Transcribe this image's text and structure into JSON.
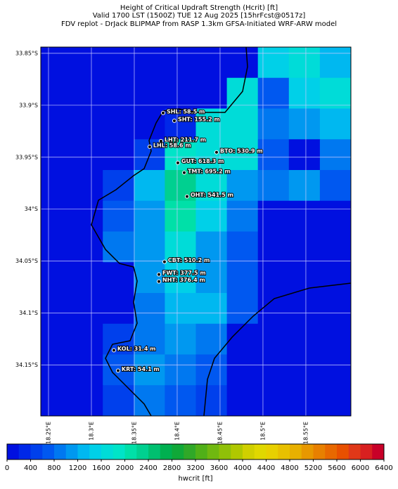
{
  "header": {
    "lines": [
      "Height of Critical Updraft Strength (Hcrit) [ft]",
      "Valid 1700 LST (1500Z) TUE 12 Aug 2025 [15hrFcst@0517z]",
      "FDV replot - DrJack BLIPMAP from RASP 1.3km GFSA-Initiated WRF-ARW model"
    ]
  },
  "map": {
    "xlim": [
      18.241,
      18.6025
    ],
    "ylim": [
      -34.199,
      -33.844
    ],
    "xticks": [
      {
        "value": 18.25,
        "label": "18.25°E"
      },
      {
        "value": 18.3,
        "label": "18.3°E"
      },
      {
        "value": 18.35,
        "label": "18.35°E"
      },
      {
        "value": 18.4,
        "label": "18.4°E"
      },
      {
        "value": 18.45,
        "label": "18.45°E"
      },
      {
        "value": 18.5,
        "label": "18.5°E"
      },
      {
        "value": 18.55,
        "label": "18.55°E"
      }
    ],
    "yticks": [
      {
        "value": -33.85,
        "label": "33.85°S"
      },
      {
        "value": -33.9,
        "label": "33.9°S"
      },
      {
        "value": -33.95,
        "label": "33.95°S"
      },
      {
        "value": -34.0,
        "label": "34°S"
      },
      {
        "value": -34.05,
        "label": "34.05°S"
      },
      {
        "value": -34.1,
        "label": "34.1°S"
      },
      {
        "value": -34.15,
        "label": "34.15°S"
      }
    ],
    "grid": [
      [
        100,
        100,
        100,
        100,
        100,
        100,
        100,
        1500,
        1700,
        1300
      ],
      [
        100,
        100,
        100,
        100,
        100,
        100,
        1700,
        700,
        1500,
        1700
      ],
      [
        100,
        100,
        100,
        100,
        300,
        1700,
        1700,
        900,
        1100,
        1300
      ],
      [
        100,
        100,
        100,
        500,
        1900,
        1700,
        1700,
        700,
        100,
        900
      ],
      [
        100,
        100,
        500,
        1300,
        2300,
        1700,
        1100,
        900,
        1100,
        700
      ],
      [
        100,
        100,
        700,
        1100,
        2100,
        1500,
        900,
        100,
        100,
        100
      ],
      [
        100,
        100,
        900,
        1100,
        1700,
        1100,
        700,
        100,
        100,
        100
      ],
      [
        100,
        100,
        100,
        1100,
        1500,
        1100,
        700,
        100,
        100,
        100
      ],
      [
        100,
        100,
        100,
        900,
        1300,
        1300,
        700,
        100,
        100,
        100
      ],
      [
        100,
        100,
        500,
        900,
        1100,
        900,
        100,
        100,
        100,
        100
      ],
      [
        100,
        100,
        700,
        1100,
        900,
        700,
        100,
        100,
        100,
        100
      ],
      [
        100,
        100,
        500,
        900,
        700,
        500,
        100,
        100,
        100,
        100
      ]
    ],
    "stations": [
      {
        "label": "SHL: 58.5 m",
        "lon": 18.3836,
        "lat": -33.9074
      },
      {
        "label": "SHT: 155.2 m",
        "lon": 18.3967,
        "lat": -33.9149
      },
      {
        "label": "LHT: 211.7 m",
        "lon": 18.3811,
        "lat": -33.9345
      },
      {
        "label": "LHL: 58.6 m",
        "lon": 18.368,
        "lat": -33.9399
      },
      {
        "label": "BTO: 530.9 m",
        "lon": 18.4459,
        "lat": -33.9453
      },
      {
        "label": "GUT: 618.3 m",
        "lon": 18.4008,
        "lat": -33.9554
      },
      {
        "label": "TMT: 695.2 m",
        "lon": 18.4082,
        "lat": -33.9649
      },
      {
        "label": "OHT: 541.5 m",
        "lon": 18.4115,
        "lat": -33.9878
      },
      {
        "label": "CBT: 510.2 m",
        "lon": 18.3852,
        "lat": -34.0507
      },
      {
        "label": "FWT: 377.5 m",
        "lon": 18.3787,
        "lat": -34.0628
      },
      {
        "label": "NHT: 376.4 m",
        "lon": 18.3787,
        "lat": -34.0696
      },
      {
        "label": "KOL: 31.4 m",
        "lon": 18.3262,
        "lat": -34.1358
      },
      {
        "label": "KRT: 54.1 m",
        "lon": 18.3311,
        "lat": -34.1554
      }
    ]
  },
  "colorbar": {
    "label": "hwcrit [ft]",
    "lim": [
      0,
      6400
    ],
    "ticks": [
      0,
      400,
      800,
      1200,
      1600,
      2000,
      2400,
      2800,
      3200,
      3600,
      4000,
      4400,
      4800,
      5200,
      5600,
      6000,
      6400
    ],
    "colors": [
      "#0010e0",
      "#0028e8",
      "#0040ec",
      "#0058f0",
      "#0078f0",
      "#0098f0",
      "#00b8f0",
      "#00d0e8",
      "#00dcd8",
      "#00e4c8",
      "#00e0a8",
      "#00d090",
      "#00c070",
      "#00b050",
      "#10a838",
      "#30a828",
      "#50b018",
      "#70b810",
      "#90c008",
      "#b0c800",
      "#d0d000",
      "#e0d800",
      "#e8d000",
      "#e8c000",
      "#e8b000",
      "#e89800",
      "#e88000",
      "#e86800",
      "#e85000",
      "#e03818",
      "#d82020",
      "#c80028"
    ]
  }
}
